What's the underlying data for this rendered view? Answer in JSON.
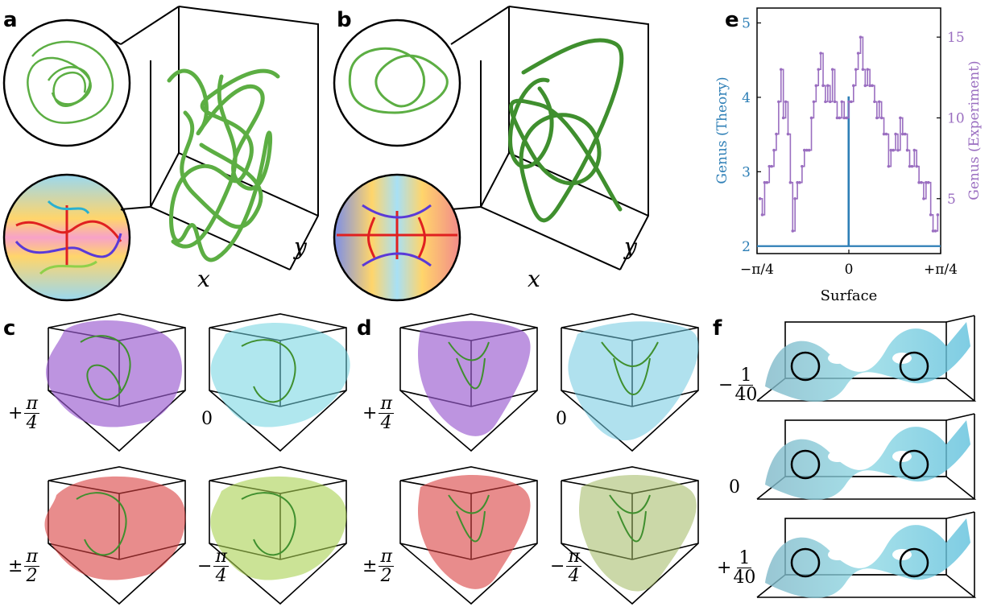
{
  "panels": {
    "a": {
      "label": "a",
      "x_axis": "x",
      "y_axis": "y"
    },
    "b": {
      "label": "b",
      "x_axis": "x",
      "y_axis": "y"
    },
    "c": {
      "label": "c",
      "angles": [
        "+",
        "π",
        "4",
        "0",
        "±",
        "π",
        "2",
        "−",
        "π",
        "4"
      ]
    },
    "d": {
      "label": "d",
      "angles": [
        "+",
        "π",
        "4",
        "0",
        "±",
        "π",
        "2",
        "−",
        "π",
        "4"
      ]
    },
    "e": {
      "label": "e"
    },
    "f": {
      "label": "f",
      "offsets": [
        "−",
        "1",
        "40",
        "0",
        "+",
        "1",
        "40"
      ]
    }
  },
  "chart_data": {
    "type": "line",
    "xlabel": "Surface",
    "ylabel_left": "Genus (Theory)",
    "ylabel_right": "Genus (Experiment)",
    "x_ticks": [
      "−π/4",
      "0",
      "+π/4"
    ],
    "x_range": [
      -0.785,
      0.785
    ],
    "left_ticks": [
      "2",
      "3",
      "4",
      "5"
    ],
    "left_range": [
      1.9,
      5.2
    ],
    "right_ticks": [
      "5",
      "10",
      "15"
    ],
    "right_range": [
      1.6,
      16.8
    ],
    "series": [
      {
        "axis": "left",
        "color": "#2e7fb6",
        "x": [
          -0.785,
          -0.003,
          -0.003,
          0.0,
          0.0,
          0.003,
          0.003,
          0.785
        ],
        "y": [
          2,
          2,
          4,
          4,
          2,
          2,
          2,
          2
        ]
      },
      {
        "axis": "right",
        "color": "#9a6ec0",
        "x": [
          -0.76,
          -0.74,
          -0.72,
          -0.7,
          -0.68,
          -0.66,
          -0.64,
          -0.62,
          -0.6,
          -0.58,
          -0.56,
          -0.54,
          -0.52,
          -0.5,
          -0.48,
          -0.46,
          -0.44,
          -0.42,
          -0.4,
          -0.38,
          -0.36,
          -0.34,
          -0.32,
          -0.3,
          -0.28,
          -0.26,
          -0.24,
          -0.22,
          -0.2,
          -0.18,
          -0.16,
          -0.14,
          -0.12,
          -0.1,
          -0.08,
          -0.06,
          -0.04,
          -0.02,
          0.0,
          0.02,
          0.04,
          0.06,
          0.08,
          0.1,
          0.12,
          0.14,
          0.16,
          0.18,
          0.2,
          0.22,
          0.24,
          0.26,
          0.28,
          0.3,
          0.32,
          0.34,
          0.36,
          0.38,
          0.4,
          0.42,
          0.44,
          0.46,
          0.48,
          0.5,
          0.52,
          0.54,
          0.56,
          0.58,
          0.6,
          0.62,
          0.64,
          0.66,
          0.68,
          0.7,
          0.72,
          0.74,
          0.76
        ],
        "y": [
          5,
          4,
          6,
          6,
          7,
          7,
          8,
          9,
          11,
          13,
          10,
          11,
          9,
          6,
          3,
          5,
          6,
          6,
          7,
          8,
          8,
          8,
          10,
          11,
          12,
          13,
          14,
          12,
          11,
          12,
          11,
          13,
          11,
          10,
          10,
          11,
          10,
          10,
          11,
          11,
          12,
          13,
          14,
          15,
          13,
          12,
          13,
          12,
          12,
          11,
          10,
          11,
          10,
          9,
          9,
          7,
          8,
          8,
          9,
          8,
          10,
          9,
          9,
          8,
          7,
          7,
          8,
          7,
          6,
          6,
          5,
          6,
          6,
          4,
          3,
          3,
          4
        ]
      }
    ]
  }
}
